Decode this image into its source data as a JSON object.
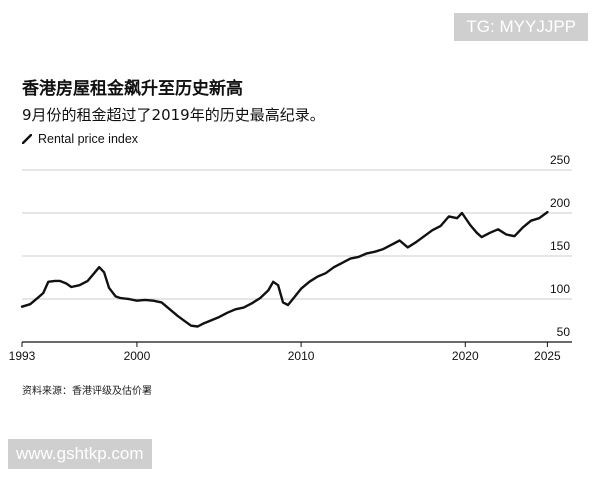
{
  "badge": {
    "text": "TG: MYYJJPP"
  },
  "watermark": {
    "text": "www.gshtkp.com"
  },
  "source": "资料来源：香港评级及估价署",
  "chart_data": {
    "type": "line",
    "title": "香港房屋租金飙升至历史新高",
    "subtitle": "9月份的租金超过了2019年的历史最高纪录。",
    "legend": [
      "Rental price index"
    ],
    "xlabel": "",
    "ylabel": "",
    "xlim": [
      1993,
      2026.5
    ],
    "ylim": [
      50,
      250
    ],
    "xticks": [
      1993,
      2000,
      2010,
      2020,
      2025
    ],
    "yticks": [
      50,
      100,
      150,
      200,
      250
    ],
    "grid": "horizontal",
    "y_axis_side": "right",
    "line_color": "#111111",
    "series": [
      {
        "name": "Rental price index",
        "x": [
          1993.0,
          1993.5,
          1994.0,
          1994.3,
          1994.6,
          1995.0,
          1995.3,
          1995.7,
          1996.0,
          1996.5,
          1997.0,
          1997.4,
          1997.7,
          1998.0,
          1998.3,
          1998.7,
          1999.0,
          1999.5,
          2000.0,
          2000.5,
          2001.0,
          2001.5,
          2002.0,
          2002.5,
          2003.0,
          2003.3,
          2003.7,
          2004.0,
          2004.5,
          2005.0,
          2005.5,
          2006.0,
          2006.5,
          2007.0,
          2007.5,
          2008.0,
          2008.3,
          2008.6,
          2008.9,
          2009.2,
          2009.5,
          2010.0,
          2010.5,
          2011.0,
          2011.5,
          2012.0,
          2012.5,
          2013.0,
          2013.5,
          2014.0,
          2014.5,
          2015.0,
          2015.5,
          2016.0,
          2016.5,
          2017.0,
          2017.5,
          2018.0,
          2018.5,
          2019.0,
          2019.5,
          2019.8,
          2020.3,
          2020.7,
          2021.0,
          2021.5,
          2022.0,
          2022.5,
          2023.0,
          2023.5,
          2024.0,
          2024.5,
          2025.0
        ],
        "values": [
          91,
          94,
          102,
          107,
          120,
          121,
          121,
          118,
          114,
          116,
          121,
          130,
          137,
          131,
          113,
          103,
          101,
          100,
          98,
          99,
          98,
          96,
          88,
          80,
          73,
          69,
          68,
          71,
          75,
          79,
          84,
          88,
          90,
          95,
          101,
          110,
          120,
          116,
          96,
          93,
          100,
          112,
          120,
          126,
          130,
          137,
          142,
          147,
          149,
          153,
          155,
          158,
          163,
          168,
          160,
          166,
          173,
          180,
          185,
          196,
          194,
          200,
          186,
          177,
          172,
          177,
          181,
          175,
          173,
          183,
          191,
          194,
          201
        ]
      }
    ]
  }
}
